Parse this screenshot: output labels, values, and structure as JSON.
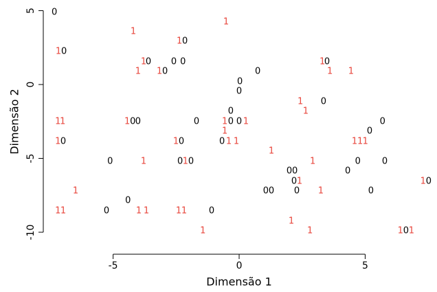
{
  "chart_data": {
    "type": "scatter",
    "x_label": "Dimensão 1",
    "y_label": "Dimensão 2",
    "xlim": [
      -7.77,
      7.85
    ],
    "ylim": [
      -10.79,
      5.35
    ],
    "xticks": [
      -5,
      0,
      5
    ],
    "yticks": [
      5,
      0,
      -5,
      {
        "value": -10,
        "label": "-10"
      }
    ],
    "series": [
      {
        "name": "0",
        "color": "#000000",
        "x": [
          -7.33,
          -2.15,
          -6.95,
          -3.6,
          -2.59,
          -2.23,
          3.49,
          -2.94,
          0.74,
          0.03,
          0,
          3.35,
          -0.33,
          -4.22,
          -4.01,
          -1.69,
          -0.33,
          0,
          5.69,
          5.18,
          -6.98,
          -2.29,
          -0.68,
          -5.12,
          -2.34,
          -1.91,
          4.71,
          5.78,
          1.99,
          2.21,
          4.31,
          2.18,
          7.52,
          1.06,
          1.28,
          2.29,
          5.23,
          -4.41,
          -5.26,
          -1.09,
          6.62
        ],
        "y": [
          4.88,
          2.93,
          2.23,
          1.53,
          1.53,
          1.53,
          1.53,
          0.88,
          0.88,
          0.19,
          -0.47,
          -1.16,
          -1.81,
          -2.51,
          -2.51,
          -2.51,
          -2.51,
          -2.51,
          -2.51,
          -3.16,
          -3.86,
          -3.86,
          -3.86,
          -5.21,
          -5.21,
          -5.21,
          -5.21,
          -5.21,
          -5.86,
          -5.86,
          -5.86,
          -6.56,
          -6.56,
          -7.21,
          -7.21,
          -7.21,
          -7.21,
          -7.86,
          -8.56,
          -8.56,
          -9.91
        ]
      },
      {
        "name": "1",
        "color": "#e8463c",
        "x": [
          -0.52,
          -4.2,
          -2.37,
          -7.17,
          -3.79,
          3.3,
          -4.01,
          -3.16,
          3.6,
          4.44,
          2.43,
          2.64,
          -7.19,
          -7.0,
          -4.44,
          -0.57,
          0.27,
          -0.57,
          -7.19,
          -2.51,
          -0.41,
          -0.11,
          4.58,
          4.8,
          5.01,
          1.28,
          -3.79,
          -2.13,
          2.92,
          2.4,
          7.3,
          -6.49,
          3.24,
          -7.19,
          -6.98,
          -3.98,
          -3.68,
          -2.4,
          -2.18,
          2.07,
          -1.44,
          2.81,
          6.4,
          6.84
        ],
        "y": [
          4.23,
          3.58,
          2.93,
          2.23,
          1.53,
          1.53,
          0.88,
          0.88,
          0.88,
          0.88,
          -1.16,
          -1.81,
          -2.51,
          -2.51,
          -2.51,
          -2.51,
          -2.51,
          -3.16,
          -3.86,
          -3.86,
          -3.86,
          -3.86,
          -3.86,
          -3.86,
          -3.86,
          -4.51,
          -5.21,
          -5.21,
          -5.21,
          -6.56,
          -6.56,
          -7.21,
          -7.21,
          -8.56,
          -8.56,
          -8.56,
          -8.56,
          -8.56,
          -8.56,
          -9.26,
          -9.91,
          -9.91,
          -9.91,
          -9.91
        ]
      }
    ]
  }
}
